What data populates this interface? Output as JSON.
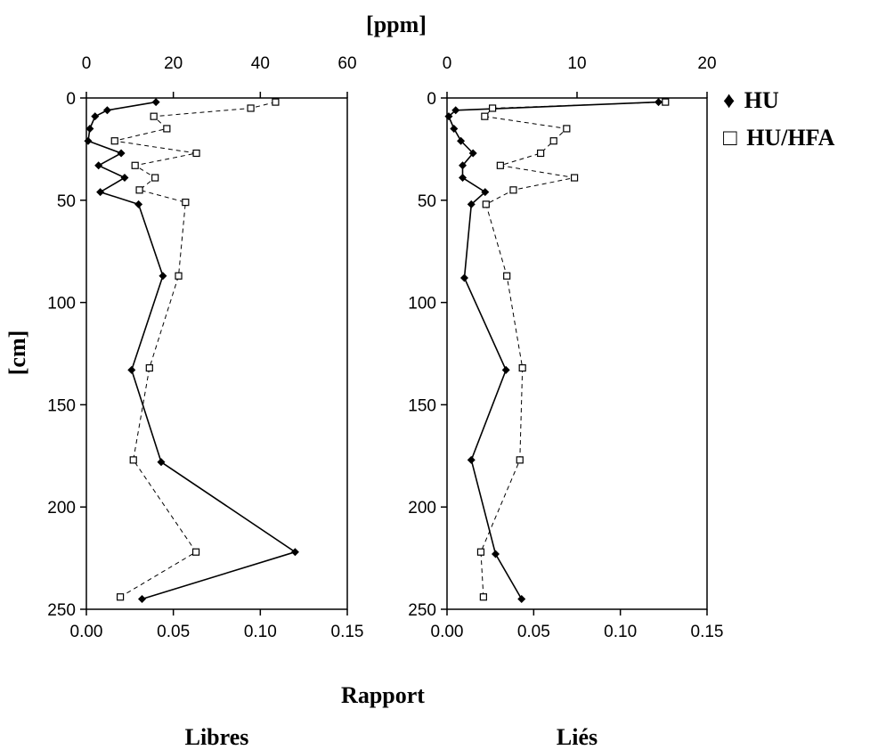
{
  "figure": {
    "top_label": "[ppm]",
    "y_label": "[cm]",
    "bottom_label": "Rapport",
    "legend": [
      {
        "symbol": "♦",
        "label": "HU"
      },
      {
        "symbol": "□",
        "label": "HU/HFA"
      }
    ]
  },
  "chart_data": [
    {
      "type": "line",
      "title": "Libres",
      "xlabel": "Rapport",
      "ylabel": "[cm]",
      "secondary_xlabel": "[ppm]",
      "y_inverted": true,
      "grid": false,
      "legend_position": "right",
      "xlim": [
        0.0,
        0.15
      ],
      "x_ticks": [
        "0.00",
        "0.05",
        "0.10",
        "0.15"
      ],
      "x_tick_values": [
        0.0,
        0.05,
        0.1,
        0.15
      ],
      "secondary_xlim": [
        0,
        60
      ],
      "secondary_x_ticks": [
        "0",
        "20",
        "40",
        "60"
      ],
      "secondary_x_tick_values": [
        0,
        20,
        40,
        60
      ],
      "ylim": [
        0,
        250
      ],
      "y_ticks": [
        "0",
        "50",
        "100",
        "150",
        "200",
        "250"
      ],
      "y_tick_values": [
        0,
        50,
        100,
        150,
        200,
        250
      ],
      "series": [
        {
          "name": "HU",
          "axis": "Rapport",
          "marker": "filled-diamond",
          "line": "solid",
          "points": [
            {
              "x": 0.04,
              "y": 2
            },
            {
              "x": 0.012,
              "y": 6
            },
            {
              "x": 0.005,
              "y": 9
            },
            {
              "x": 0.002,
              "y": 15
            },
            {
              "x": 0.001,
              "y": 21
            },
            {
              "x": 0.02,
              "y": 27
            },
            {
              "x": 0.007,
              "y": 33
            },
            {
              "x": 0.022,
              "y": 39
            },
            {
              "x": 0.008,
              "y": 46
            },
            {
              "x": 0.03,
              "y": 52
            },
            {
              "x": 0.044,
              "y": 87
            },
            {
              "x": 0.026,
              "y": 133
            },
            {
              "x": 0.043,
              "y": 178
            },
            {
              "x": 0.12,
              "y": 222
            },
            {
              "x": 0.032,
              "y": 245
            }
          ]
        },
        {
          "name": "HU/HFA",
          "axis": "[ppm]",
          "marker": "open-square",
          "line": "dashed",
          "points": [
            {
              "x": 43.5,
              "y": 2
            },
            {
              "x": 37.8,
              "y": 5
            },
            {
              "x": 15.5,
              "y": 9
            },
            {
              "x": 18.5,
              "y": 15
            },
            {
              "x": 6.5,
              "y": 21
            },
            {
              "x": 25.3,
              "y": 27
            },
            {
              "x": 11.2,
              "y": 33
            },
            {
              "x": 15.8,
              "y": 39
            },
            {
              "x": 12.2,
              "y": 45
            },
            {
              "x": 22.8,
              "y": 51
            },
            {
              "x": 21.2,
              "y": 87
            },
            {
              "x": 14.5,
              "y": 132
            },
            {
              "x": 10.8,
              "y": 177
            },
            {
              "x": 25.2,
              "y": 222
            },
            {
              "x": 7.8,
              "y": 244
            }
          ]
        }
      ]
    },
    {
      "type": "line",
      "title": "Liés",
      "xlabel": "Rapport",
      "ylabel": "[cm]",
      "secondary_xlabel": "[ppm]",
      "y_inverted": true,
      "grid": false,
      "legend_position": "right",
      "xlim": [
        0.0,
        0.15
      ],
      "x_ticks": [
        "0.00",
        "0.05",
        "0.10",
        "0.15"
      ],
      "x_tick_values": [
        0.0,
        0.05,
        0.1,
        0.15
      ],
      "secondary_xlim": [
        0,
        20
      ],
      "secondary_x_ticks": [
        "0",
        "10",
        "20"
      ],
      "secondary_x_tick_values": [
        0,
        10,
        20
      ],
      "ylim": [
        0,
        250
      ],
      "y_ticks": [
        "0",
        "50",
        "100",
        "150",
        "200",
        "250"
      ],
      "y_tick_values": [
        0,
        50,
        100,
        150,
        200,
        250
      ],
      "series": [
        {
          "name": "HU",
          "axis": "Rapport",
          "marker": "filled-diamond",
          "line": "solid",
          "points": [
            {
              "x": 0.122,
              "y": 2
            },
            {
              "x": 0.005,
              "y": 6
            },
            {
              "x": 0.001,
              "y": 9
            },
            {
              "x": 0.004,
              "y": 15
            },
            {
              "x": 0.008,
              "y": 21
            },
            {
              "x": 0.015,
              "y": 27
            },
            {
              "x": 0.009,
              "y": 33
            },
            {
              "x": 0.009,
              "y": 39
            },
            {
              "x": 0.022,
              "y": 46
            },
            {
              "x": 0.014,
              "y": 52
            },
            {
              "x": 0.01,
              "y": 88
            },
            {
              "x": 0.034,
              "y": 133
            },
            {
              "x": 0.014,
              "y": 177
            },
            {
              "x": 0.028,
              "y": 223
            },
            {
              "x": 0.043,
              "y": 245
            }
          ]
        },
        {
          "name": "HU/HFA",
          "axis": "[ppm]",
          "marker": "open-square",
          "line": "dashed",
          "points": [
            {
              "x": 16.8,
              "y": 2
            },
            {
              "x": 3.5,
              "y": 5
            },
            {
              "x": 2.9,
              "y": 9
            },
            {
              "x": 9.2,
              "y": 15
            },
            {
              "x": 8.2,
              "y": 21
            },
            {
              "x": 7.2,
              "y": 27
            },
            {
              "x": 4.1,
              "y": 33
            },
            {
              "x": 9.8,
              "y": 39
            },
            {
              "x": 5.1,
              "y": 45
            },
            {
              "x": 3.0,
              "y": 52
            },
            {
              "x": 4.6,
              "y": 87
            },
            {
              "x": 5.8,
              "y": 132
            },
            {
              "x": 5.6,
              "y": 177
            },
            {
              "x": 2.6,
              "y": 222
            },
            {
              "x": 2.8,
              "y": 244
            }
          ]
        }
      ]
    }
  ]
}
